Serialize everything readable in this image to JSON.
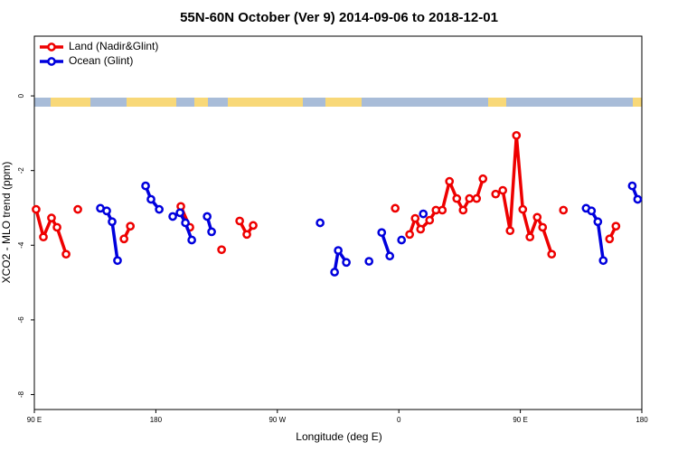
{
  "chart_data": {
    "type": "line",
    "title": "55N-60N October (Ver 9)   2014-09-06 to 2018-12-01",
    "x_label": "Longitude (deg E)",
    "y_label": "XCO2 - MLO trend (ppm)",
    "xlim": [
      -270,
      180
    ],
    "ylim": [
      -8.4,
      1.6
    ],
    "xticks": [
      {
        "value": -270,
        "label": "90 E"
      },
      {
        "value": -180,
        "label": "180"
      },
      {
        "value": -90,
        "label": "90 W"
      },
      0,
      {
        "value": 90,
        "label": "90 E"
      },
      {
        "value": 180,
        "label": "180"
      }
    ],
    "yticks": [
      0,
      -2,
      -4,
      -6,
      -8
    ],
    "legend": "top-left",
    "series": [
      {
        "name": "Land (Nadir&Glint)",
        "color": "#ee0000",
        "x": [
          -268.7,
          -263.3,
          -257.3,
          -253.2,
          -246.5,
          null,
          -237.8,
          null,
          -203.6,
          -198.9,
          null,
          -161.5,
          -154.8,
          null,
          -131.3,
          null,
          -117.9,
          -112.6,
          -107.9,
          null,
          -2.7,
          null,
          8.0,
          12.1,
          16.1,
          22.8,
          27.5,
          32.2,
          37.5,
          42.9,
          47.6,
          52.3,
          57.6,
          62.3,
          null,
          71.7,
          77.0,
          82.4,
          87.1,
          91.8,
          97.1,
          102.5,
          106.5,
          113.2,
          null,
          121.9,
          null,
          156.1,
          160.8
        ],
        "values": [
          -3.04,
          -3.78,
          -3.27,
          -3.52,
          -4.24,
          null,
          -3.04,
          null,
          -3.83,
          -3.49,
          null,
          -2.96,
          -3.52,
          null,
          -4.12,
          null,
          -3.35,
          -3.71,
          -3.47,
          null,
          -3.01,
          null,
          -3.71,
          -3.28,
          -3.57,
          -3.33,
          -3.06,
          -3.06,
          -2.29,
          -2.75,
          -3.06,
          -2.75,
          -2.75,
          -2.22,
          null,
          -2.63,
          -2.53,
          -3.61,
          -1.06,
          -3.04,
          -3.78,
          -3.25,
          -3.52,
          -4.24,
          null,
          -3.06,
          null,
          -3.83,
          -3.49
        ]
      },
      {
        "name": "Ocean (Glint)",
        "color": "#0000dd",
        "x": [
          -221.1,
          -216.4,
          -212.4,
          -208.4,
          null,
          -187.6,
          -183.6,
          -177.5,
          null,
          -167.5,
          -162.1,
          -158.1,
          -153.4,
          null,
          -142.0,
          -138.7,
          null,
          -58.3,
          null,
          -47.6,
          -44.9,
          -38.9,
          null,
          -22.1,
          null,
          -12.7,
          -6.7,
          null,
          2.0,
          null,
          18.1,
          null,
          138.7,
          142.7,
          147.4,
          151.4,
          null,
          172.9,
          176.9
        ],
        "values": [
          -3.01,
          -3.08,
          -3.37,
          -4.41,
          null,
          -2.41,
          -2.77,
          -3.04,
          null,
          -3.23,
          -3.13,
          -3.4,
          -3.86,
          null,
          -3.23,
          -3.64,
          null,
          -3.4,
          null,
          -4.72,
          -4.14,
          -4.46,
          null,
          -4.43,
          null,
          -3.66,
          -4.29,
          null,
          -3.86,
          null,
          -3.16,
          null,
          -3.01,
          -3.08,
          -3.37,
          -4.41,
          null,
          -2.41,
          -2.77
        ]
      }
    ]
  }
}
